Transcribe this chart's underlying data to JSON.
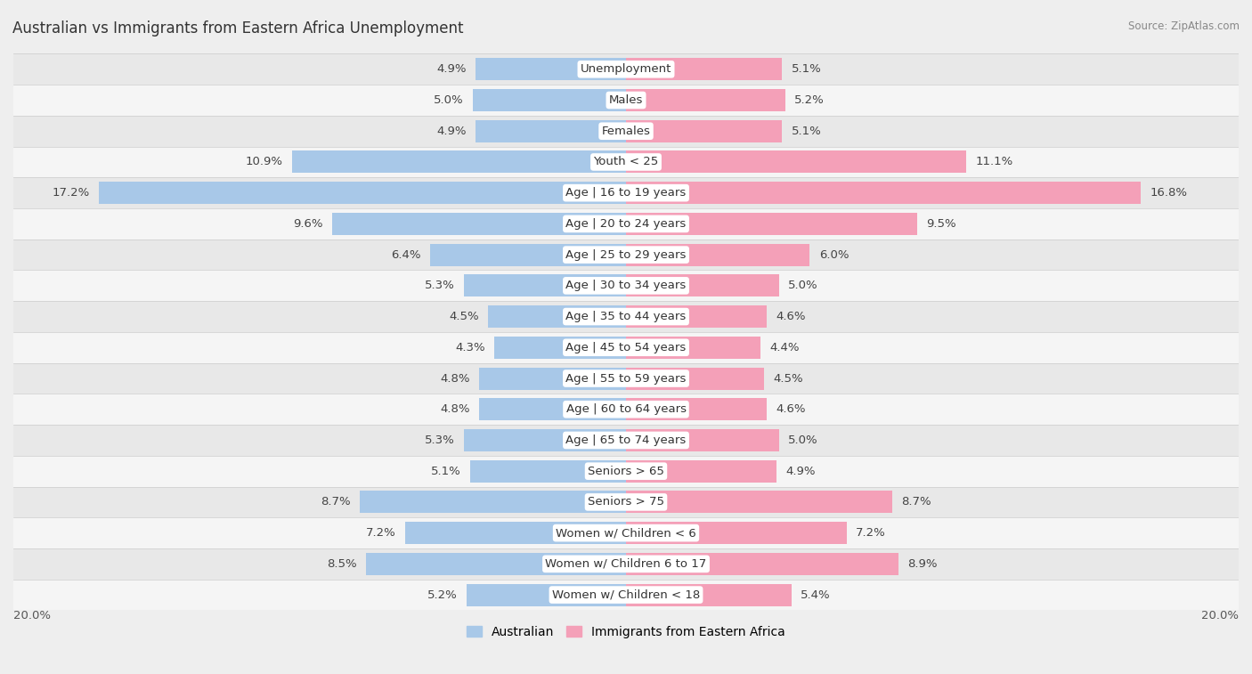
{
  "title": "Australian vs Immigrants from Eastern Africa Unemployment",
  "source": "Source: ZipAtlas.com",
  "categories": [
    "Unemployment",
    "Males",
    "Females",
    "Youth < 25",
    "Age | 16 to 19 years",
    "Age | 20 to 24 years",
    "Age | 25 to 29 years",
    "Age | 30 to 34 years",
    "Age | 35 to 44 years",
    "Age | 45 to 54 years",
    "Age | 55 to 59 years",
    "Age | 60 to 64 years",
    "Age | 65 to 74 years",
    "Seniors > 65",
    "Seniors > 75",
    "Women w/ Children < 6",
    "Women w/ Children 6 to 17",
    "Women w/ Children < 18"
  ],
  "australian": [
    4.9,
    5.0,
    4.9,
    10.9,
    17.2,
    9.6,
    6.4,
    5.3,
    4.5,
    4.3,
    4.8,
    4.8,
    5.3,
    5.1,
    8.7,
    7.2,
    8.5,
    5.2
  ],
  "immigrants": [
    5.1,
    5.2,
    5.1,
    11.1,
    16.8,
    9.5,
    6.0,
    5.0,
    4.6,
    4.4,
    4.5,
    4.6,
    5.0,
    4.9,
    8.7,
    7.2,
    8.9,
    5.4
  ],
  "australian_color": "#a8c8e8",
  "immigrant_color": "#f4a0b8",
  "background_color": "#eeeeee",
  "row_bg_even": "#f5f5f5",
  "row_bg_odd": "#e8e8e8",
  "max_val": 20.0,
  "label_fontsize": 9.5,
  "title_fontsize": 12,
  "legend_label_australian": "Australian",
  "legend_label_immigrants": "Immigrants from Eastern Africa"
}
